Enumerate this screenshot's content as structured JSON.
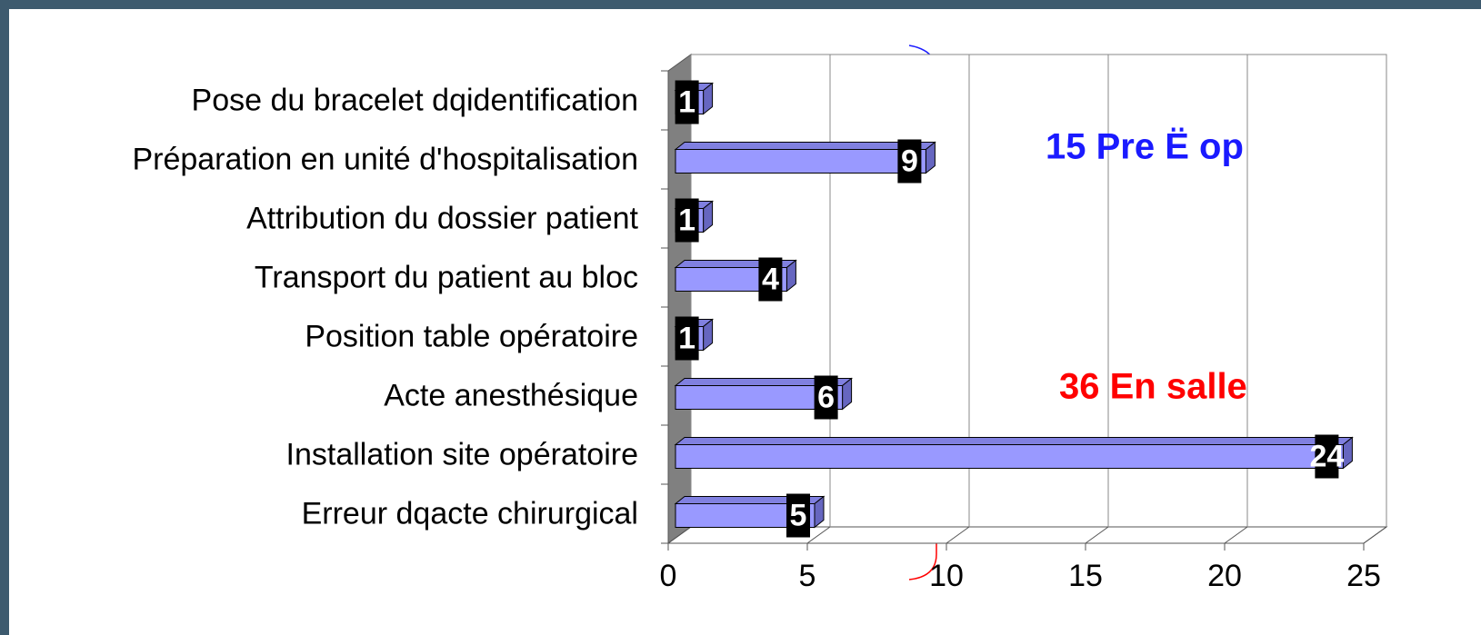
{
  "chart_data": {
    "type": "bar3d_horizontal",
    "categories": [
      "Pose du bracelet dqidentification",
      "Préparation en unité d'hospitalisation",
      "Attribution du dossier patient",
      "Transport du patient au bloc",
      "Position table opératoire",
      "Acte anesthésique",
      "Installation site opératoire",
      "Erreur dqacte chirurgical"
    ],
    "values": [
      1,
      9,
      1,
      4,
      1,
      6,
      24,
      5
    ],
    "color": "#9999ff",
    "xlim": [
      0,
      25
    ],
    "xticks": [
      0,
      5,
      10,
      15,
      20,
      25
    ],
    "grid": true,
    "annotations": [
      {
        "text": "15 Pre Ë op",
        "color": "#1a1aff"
      },
      {
        "text": "36 En salle",
        "color": "#ff0000"
      }
    ]
  }
}
